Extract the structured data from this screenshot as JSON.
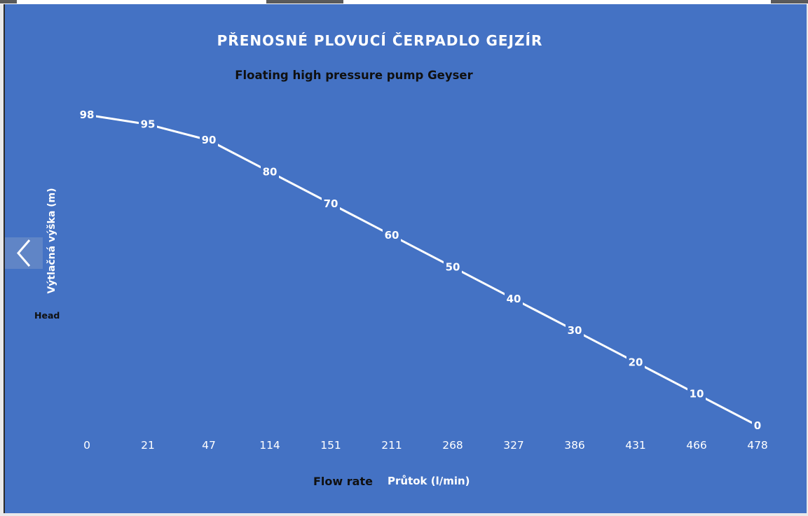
{
  "chart_data": {
    "type": "line",
    "title": "PŘENOSNÉ PLOVUCÍ ČERPADLO GEJZÍR",
    "subtitle": "Floating high pressure pump Geyser",
    "ylabel": "Výtlačná výška (m)",
    "ylabel_en": "Head",
    "xlabel_en": "Flow rate",
    "xlabel": "Průtok (l/min)",
    "categories": [
      "0",
      "21",
      "47",
      "114",
      "151",
      "211",
      "268",
      "327",
      "386",
      "431",
      "466",
      "478"
    ],
    "series": [
      {
        "values": [
          98,
          95,
          90,
          80,
          70,
          60,
          50,
          40,
          30,
          20,
          10,
          0
        ]
      }
    ],
    "ylim": [
      0,
      98
    ],
    "grid": "vertical drop lines",
    "legend": "none",
    "data_labels": true,
    "colors": {
      "background": "#4472c4",
      "line": "#ffffff",
      "title": "#ffffff",
      "subtitle": "#101010"
    }
  },
  "nav": {
    "prev_icon": "chevron-left-icon"
  }
}
